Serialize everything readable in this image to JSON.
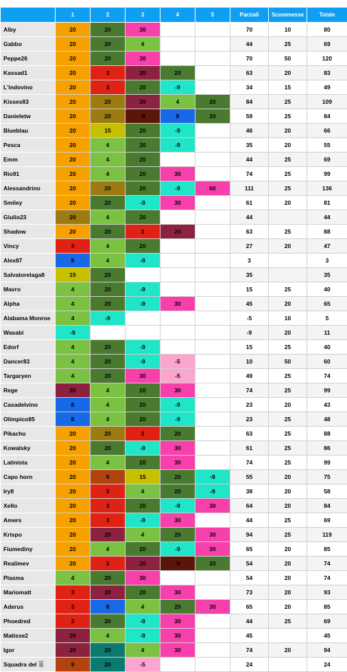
{
  "headers": [
    "",
    "1",
    "2",
    "3",
    "4",
    "5",
    "Parziali",
    "Scommesse",
    "Totale"
  ],
  "colors": {
    "20": "#f7a100",
    "30": "#f740ac",
    "3": "#e02214",
    "4": "#7cc242",
    "8": "#1769e8",
    "9": "#b3430e",
    "15": "#c7c000",
    "-9": "#1fe6c8",
    "-5": "#fba5cf",
    "60": "#f740ac",
    "dark_green": "#4a7a30",
    "olive": "#9c7b10",
    "maroon": "#8c2240",
    "dark_red": "#5a1608",
    "teal": "#0b7a70",
    "purple": "#8b2b5e",
    "crimson": "#c21818",
    "pink": "#f740ac",
    "header_blue": "#0f9ff2"
  },
  "rows": [
    {
      "name": "Alby",
      "cells": [
        [
          "20",
          "#f7a100"
        ],
        [
          "20",
          "#4a7a30"
        ],
        [
          "30",
          "#f740ac"
        ],
        [
          "",
          ""
        ],
        [
          "",
          ""
        ]
      ],
      "parziali": "70",
      "scommesse": "10",
      "totale": "80"
    },
    {
      "name": "Gabbo",
      "cells": [
        [
          "20",
          "#f7a100"
        ],
        [
          "20",
          "#4a7a30"
        ],
        [
          "4",
          "#7cc242"
        ],
        [
          "",
          ""
        ],
        [
          "",
          ""
        ]
      ],
      "parziali": "44",
      "scommesse": "25",
      "totale": "69"
    },
    {
      "name": "Peppe26",
      "cells": [
        [
          "20",
          "#f7a100"
        ],
        [
          "20",
          "#4a7a30"
        ],
        [
          "30",
          "#f740ac"
        ],
        [
          "",
          ""
        ],
        [
          "",
          ""
        ]
      ],
      "parziali": "70",
      "scommesse": "50",
      "totale": "120"
    },
    {
      "name": "Kassad1",
      "cells": [
        [
          "20",
          "#f7a100"
        ],
        [
          "3",
          "#e02214"
        ],
        [
          "20",
          "#8c2240"
        ],
        [
          "20",
          "#4a7a30"
        ],
        [
          "",
          ""
        ]
      ],
      "parziali": "63",
      "scommesse": "20",
      "totale": "83"
    },
    {
      "name": "L'indovino",
      "cells": [
        [
          "20",
          "#f7a100"
        ],
        [
          "3",
          "#e02214"
        ],
        [
          "20",
          "#4a7a30"
        ],
        [
          "-9",
          "#1fe6c8"
        ],
        [
          "",
          ""
        ]
      ],
      "parziali": "34",
      "scommesse": "15",
      "totale": "49"
    },
    {
      "name": "Kisses83",
      "cells": [
        [
          "20",
          "#f7a100"
        ],
        [
          "20",
          "#9c7b10"
        ],
        [
          "20",
          "#8c2240"
        ],
        [
          "4",
          "#7cc242"
        ],
        [
          "20",
          "#4a7a30"
        ]
      ],
      "parziali": "84",
      "scommesse": "25",
      "totale": "109"
    },
    {
      "name": "Danieletw",
      "cells": [
        [
          "20",
          "#f7a100"
        ],
        [
          "20",
          "#9c7b10"
        ],
        [
          "-9",
          "#5a1608"
        ],
        [
          "8",
          "#1769e8"
        ],
        [
          "20",
          "#4a7a30"
        ]
      ],
      "parziali": "59",
      "scommesse": "25",
      "totale": "84"
    },
    {
      "name": "Blueblau",
      "cells": [
        [
          "20",
          "#f7a100"
        ],
        [
          "15",
          "#c7c000"
        ],
        [
          "20",
          "#4a7a30"
        ],
        [
          "-9",
          "#1fe6c8"
        ],
        [
          "",
          ""
        ]
      ],
      "parziali": "46",
      "scommesse": "20",
      "totale": "66"
    },
    {
      "name": "Pesca",
      "cells": [
        [
          "20",
          "#f7a100"
        ],
        [
          "4",
          "#7cc242"
        ],
        [
          "20",
          "#4a7a30"
        ],
        [
          "-9",
          "#1fe6c8"
        ],
        [
          "",
          ""
        ]
      ],
      "parziali": "35",
      "scommesse": "20",
      "totale": "55"
    },
    {
      "name": "Emm",
      "cells": [
        [
          "20",
          "#f7a100"
        ],
        [
          "4",
          "#7cc242"
        ],
        [
          "20",
          "#4a7a30"
        ],
        [
          "",
          ""
        ],
        [
          "",
          ""
        ]
      ],
      "parziali": "44",
      "scommesse": "25",
      "totale": "69"
    },
    {
      "name": "Rio91",
      "cells": [
        [
          "20",
          "#f7a100"
        ],
        [
          "4",
          "#7cc242"
        ],
        [
          "20",
          "#4a7a30"
        ],
        [
          "30",
          "#f740ac"
        ],
        [
          "",
          ""
        ]
      ],
      "parziali": "74",
      "scommesse": "25",
      "totale": "99"
    },
    {
      "name": "Alessandrino",
      "cells": [
        [
          "20",
          "#f7a100"
        ],
        [
          "20",
          "#9c7b10"
        ],
        [
          "20",
          "#4a7a30"
        ],
        [
          "-9",
          "#1fe6c8"
        ],
        [
          "60",
          "#f740ac"
        ]
      ],
      "parziali": "111",
      "scommesse": "25",
      "totale": "136"
    },
    {
      "name": "Smiley",
      "cells": [
        [
          "20",
          "#f7a100"
        ],
        [
          "20",
          "#4a7a30"
        ],
        [
          "-9",
          "#1fe6c8"
        ],
        [
          "30",
          "#f740ac"
        ],
        [
          "",
          ""
        ]
      ],
      "parziali": "61",
      "scommesse": "20",
      "totale": "81"
    },
    {
      "name": "Giulio23",
      "cells": [
        [
          "20",
          "#9c7b10"
        ],
        [
          "4",
          "#7cc242"
        ],
        [
          "20",
          "#4a7a30"
        ],
        [
          "",
          ""
        ],
        [
          "",
          ""
        ]
      ],
      "parziali": "44",
      "scommesse": "",
      "totale": "44"
    },
    {
      "name": "Shadow",
      "cells": [
        [
          "20",
          "#f7a100"
        ],
        [
          "20",
          "#4a7a30"
        ],
        [
          "3",
          "#e02214"
        ],
        [
          "20",
          "#8c2240"
        ],
        [
          "",
          ""
        ]
      ],
      "parziali": "63",
      "scommesse": "25",
      "totale": "88"
    },
    {
      "name": "Vincy",
      "cells": [
        [
          "3",
          "#e02214"
        ],
        [
          "4",
          "#7cc242"
        ],
        [
          "20",
          "#4a7a30"
        ],
        [
          "",
          ""
        ],
        [
          "",
          ""
        ]
      ],
      "parziali": "27",
      "scommesse": "20",
      "totale": "47"
    },
    {
      "name": "Alex87",
      "cells": [
        [
          "8",
          "#1769e8"
        ],
        [
          "4",
          "#7cc242"
        ],
        [
          "-9",
          "#1fe6c8"
        ],
        [
          "",
          ""
        ],
        [
          "",
          ""
        ]
      ],
      "parziali": "3",
      "scommesse": "",
      "totale": "3"
    },
    {
      "name": "Salvatorelaga8",
      "cells": [
        [
          "15",
          "#c7c000"
        ],
        [
          "20",
          "#4a7a30"
        ],
        [
          "",
          ""
        ],
        [
          "",
          ""
        ],
        [
          "",
          ""
        ]
      ],
      "parziali": "35",
      "scommesse": "",
      "totale": "35"
    },
    {
      "name": "Mavro",
      "cells": [
        [
          "4",
          "#7cc242"
        ],
        [
          "20",
          "#4a7a30"
        ],
        [
          "-9",
          "#1fe6c8"
        ],
        [
          "",
          ""
        ],
        [
          "",
          ""
        ]
      ],
      "parziali": "15",
      "scommesse": "25",
      "totale": "40"
    },
    {
      "name": "Alpha",
      "cells": [
        [
          "4",
          "#7cc242"
        ],
        [
          "20",
          "#4a7a30"
        ],
        [
          "-9",
          "#1fe6c8"
        ],
        [
          "30",
          "#f740ac"
        ],
        [
          "",
          ""
        ]
      ],
      "parziali": "45",
      "scommesse": "20",
      "totale": "65"
    },
    {
      "name": "Alabama Monroe",
      "cells": [
        [
          "4",
          "#7cc242"
        ],
        [
          "-9",
          "#1fe6c8"
        ],
        [
          "",
          ""
        ],
        [
          "",
          ""
        ],
        [
          "",
          ""
        ]
      ],
      "parziali": "-5",
      "scommesse": "10",
      "totale": "5"
    },
    {
      "name": "Wasabi",
      "cells": [
        [
          "-9",
          "#1fe6c8"
        ],
        [
          "",
          ""
        ],
        [
          "",
          ""
        ],
        [
          "",
          ""
        ],
        [
          "",
          ""
        ]
      ],
      "parziali": "-9",
      "scommesse": "20",
      "totale": "11"
    },
    {
      "name": "Edorf",
      "cells": [
        [
          "4",
          "#7cc242"
        ],
        [
          "20",
          "#4a7a30"
        ],
        [
          "-9",
          "#1fe6c8"
        ],
        [
          "",
          ""
        ],
        [
          "",
          ""
        ]
      ],
      "parziali": "15",
      "scommesse": "25",
      "totale": "40"
    },
    {
      "name": "Dancer83",
      "cells": [
        [
          "4",
          "#7cc242"
        ],
        [
          "20",
          "#4a7a30"
        ],
        [
          "-9",
          "#1fe6c8"
        ],
        [
          "-5",
          "#fba5cf"
        ],
        [
          "",
          ""
        ]
      ],
      "parziali": "10",
      "scommesse": "50",
      "totale": "60"
    },
    {
      "name": "Targaryen",
      "cells": [
        [
          "4",
          "#7cc242"
        ],
        [
          "20",
          "#4a7a30"
        ],
        [
          "30",
          "#f740ac"
        ],
        [
          "-5",
          "#fba5cf"
        ],
        [
          "",
          ""
        ]
      ],
      "parziali": "49",
      "scommesse": "25",
      "totale": "74"
    },
    {
      "name": "Rege",
      "cells": [
        [
          "20",
          "#8c2240"
        ],
        [
          "4",
          "#7cc242"
        ],
        [
          "20",
          "#4a7a30"
        ],
        [
          "30",
          "#f740ac"
        ],
        [
          "",
          ""
        ]
      ],
      "parziali": "74",
      "scommesse": "25",
      "totale": "99"
    },
    {
      "name": "Casadelvino",
      "cells": [
        [
          "8",
          "#1769e8"
        ],
        [
          "4",
          "#7cc242"
        ],
        [
          "20",
          "#4a7a30"
        ],
        [
          "-9",
          "#1fe6c8"
        ],
        [
          "",
          ""
        ]
      ],
      "parziali": "23",
      "scommesse": "20",
      "totale": "43"
    },
    {
      "name": "Olimpico85",
      "cells": [
        [
          "8",
          "#1769e8"
        ],
        [
          "4",
          "#7cc242"
        ],
        [
          "20",
          "#4a7a30"
        ],
        [
          "-9",
          "#1fe6c8"
        ],
        [
          "",
          ""
        ]
      ],
      "parziali": "23",
      "scommesse": "25",
      "totale": "48"
    },
    {
      "name": "Pikachu",
      "cells": [
        [
          "20",
          "#f7a100"
        ],
        [
          "20",
          "#9c7b10"
        ],
        [
          "3",
          "#e02214"
        ],
        [
          "20",
          "#4a7a30"
        ],
        [
          "",
          ""
        ]
      ],
      "parziali": "63",
      "scommesse": "25",
      "totale": "88"
    },
    {
      "name": "Kowalsky",
      "cells": [
        [
          "20",
          "#f7a100"
        ],
        [
          "20",
          "#4a7a30"
        ],
        [
          "-9",
          "#1fe6c8"
        ],
        [
          "30",
          "#f740ac"
        ],
        [
          "",
          ""
        ]
      ],
      "parziali": "61",
      "scommesse": "25",
      "totale": "86"
    },
    {
      "name": "Latinista",
      "cells": [
        [
          "20",
          "#f7a100"
        ],
        [
          "4",
          "#7cc242"
        ],
        [
          "20",
          "#4a7a30"
        ],
        [
          "30",
          "#f740ac"
        ],
        [
          "",
          ""
        ]
      ],
      "parziali": "74",
      "scommesse": "25",
      "totale": "99"
    },
    {
      "name": "Capo horn",
      "cells": [
        [
          "20",
          "#f7a100"
        ],
        [
          "9",
          "#b3430e"
        ],
        [
          "15",
          "#c7c000"
        ],
        [
          "20",
          "#4a7a30"
        ],
        [
          "-9",
          "#1fe6c8"
        ]
      ],
      "parziali": "55",
      "scommesse": "20",
      "totale": "75"
    },
    {
      "name": "Iry8",
      "cells": [
        [
          "20",
          "#f7a100"
        ],
        [
          "3",
          "#e02214"
        ],
        [
          "4",
          "#7cc242"
        ],
        [
          "20",
          "#4a7a30"
        ],
        [
          "-9",
          "#1fe6c8"
        ]
      ],
      "parziali": "38",
      "scommesse": "20",
      "totale": "58"
    },
    {
      "name": "Xello",
      "cells": [
        [
          "20",
          "#f7a100"
        ],
        [
          "3",
          "#e02214"
        ],
        [
          "20",
          "#4a7a30"
        ],
        [
          "-9",
          "#1fe6c8"
        ],
        [
          "30",
          "#f740ac"
        ]
      ],
      "parziali": "64",
      "scommesse": "20",
      "totale": "84"
    },
    {
      "name": "Amers",
      "cells": [
        [
          "20",
          "#f7a100"
        ],
        [
          "3",
          "#e02214"
        ],
        [
          "-9",
          "#1fe6c8"
        ],
        [
          "30",
          "#f740ac"
        ],
        [
          "",
          ""
        ]
      ],
      "parziali": "44",
      "scommesse": "25",
      "totale": "69"
    },
    {
      "name": "Krispo",
      "cells": [
        [
          "20",
          "#f7a100"
        ],
        [
          "20",
          "#8c2240"
        ],
        [
          "4",
          "#7cc242"
        ],
        [
          "20",
          "#4a7a30"
        ],
        [
          "30",
          "#f740ac"
        ]
      ],
      "parziali": "94",
      "scommesse": "25",
      "totale": "119"
    },
    {
      "name": "Fiumediny",
      "cells": [
        [
          "20",
          "#f7a100"
        ],
        [
          "4",
          "#7cc242"
        ],
        [
          "20",
          "#4a7a30"
        ],
        [
          "-9",
          "#1fe6c8"
        ],
        [
          "30",
          "#f740ac"
        ]
      ],
      "parziali": "65",
      "scommesse": "20",
      "totale": "85"
    },
    {
      "name": "Realimev",
      "cells": [
        [
          "20",
          "#f7a100"
        ],
        [
          "3",
          "#e02214"
        ],
        [
          "20",
          "#8c2240"
        ],
        [
          "-9",
          "#5a1608"
        ],
        [
          "20",
          "#4a7a30"
        ]
      ],
      "parziali": "54",
      "scommesse": "20",
      "totale": "74"
    },
    {
      "name": "Plasma",
      "cells": [
        [
          "4",
          "#7cc242"
        ],
        [
          "20",
          "#4a7a30"
        ],
        [
          "30",
          "#f740ac"
        ],
        [
          "",
          ""
        ],
        [
          "",
          ""
        ]
      ],
      "parziali": "54",
      "scommesse": "20",
      "totale": "74"
    },
    {
      "name": "Mariomatt",
      "cells": [
        [
          "3",
          "#e02214"
        ],
        [
          "20",
          "#8c2240"
        ],
        [
          "20",
          "#4a7a30"
        ],
        [
          "30",
          "#f740ac"
        ],
        [
          "",
          ""
        ]
      ],
      "parziali": "73",
      "scommesse": "20",
      "totale": "93"
    },
    {
      "name": "Aderus",
      "cells": [
        [
          "3",
          "#e02214"
        ],
        [
          "8",
          "#1769e8"
        ],
        [
          "4",
          "#7cc242"
        ],
        [
          "20",
          "#4a7a30"
        ],
        [
          "30",
          "#f740ac"
        ]
      ],
      "parziali": "65",
      "scommesse": "20",
      "totale": "85"
    },
    {
      "name": "Phoedred",
      "cells": [
        [
          "3",
          "#e02214"
        ],
        [
          "20",
          "#4a7a30"
        ],
        [
          "-9",
          "#1fe6c8"
        ],
        [
          "30",
          "#f740ac"
        ],
        [
          "",
          ""
        ]
      ],
      "parziali": "44",
      "scommesse": "25",
      "totale": "69"
    },
    {
      "name": "Matisse2",
      "cells": [
        [
          "20",
          "#8c2240"
        ],
        [
          "4",
          "#7cc242"
        ],
        [
          "-9",
          "#1fe6c8"
        ],
        [
          "30",
          "#f740ac"
        ],
        [
          "",
          ""
        ]
      ],
      "parziali": "45",
      "scommesse": "",
      "totale": "45"
    },
    {
      "name": "Igor",
      "cells": [
        [
          "20",
          "#8c2240"
        ],
        [
          "20",
          "#0b7a70"
        ],
        [
          "4",
          "#7cc242"
        ],
        [
          "30",
          "#f740ac"
        ],
        [
          "",
          ""
        ]
      ],
      "parziali": "74",
      "scommesse": "20",
      "totale": "94"
    },
    {
      "name": "Squadra del",
      "icon": "trash-icon",
      "cells": [
        [
          "9",
          "#b3430e"
        ],
        [
          "20",
          "#0b7a70"
        ],
        [
          "-5",
          "#fba5cf"
        ],
        [
          "",
          ""
        ],
        [
          "",
          ""
        ]
      ],
      "parziali": "24",
      "scommesse": "",
      "totale": "24"
    }
  ]
}
